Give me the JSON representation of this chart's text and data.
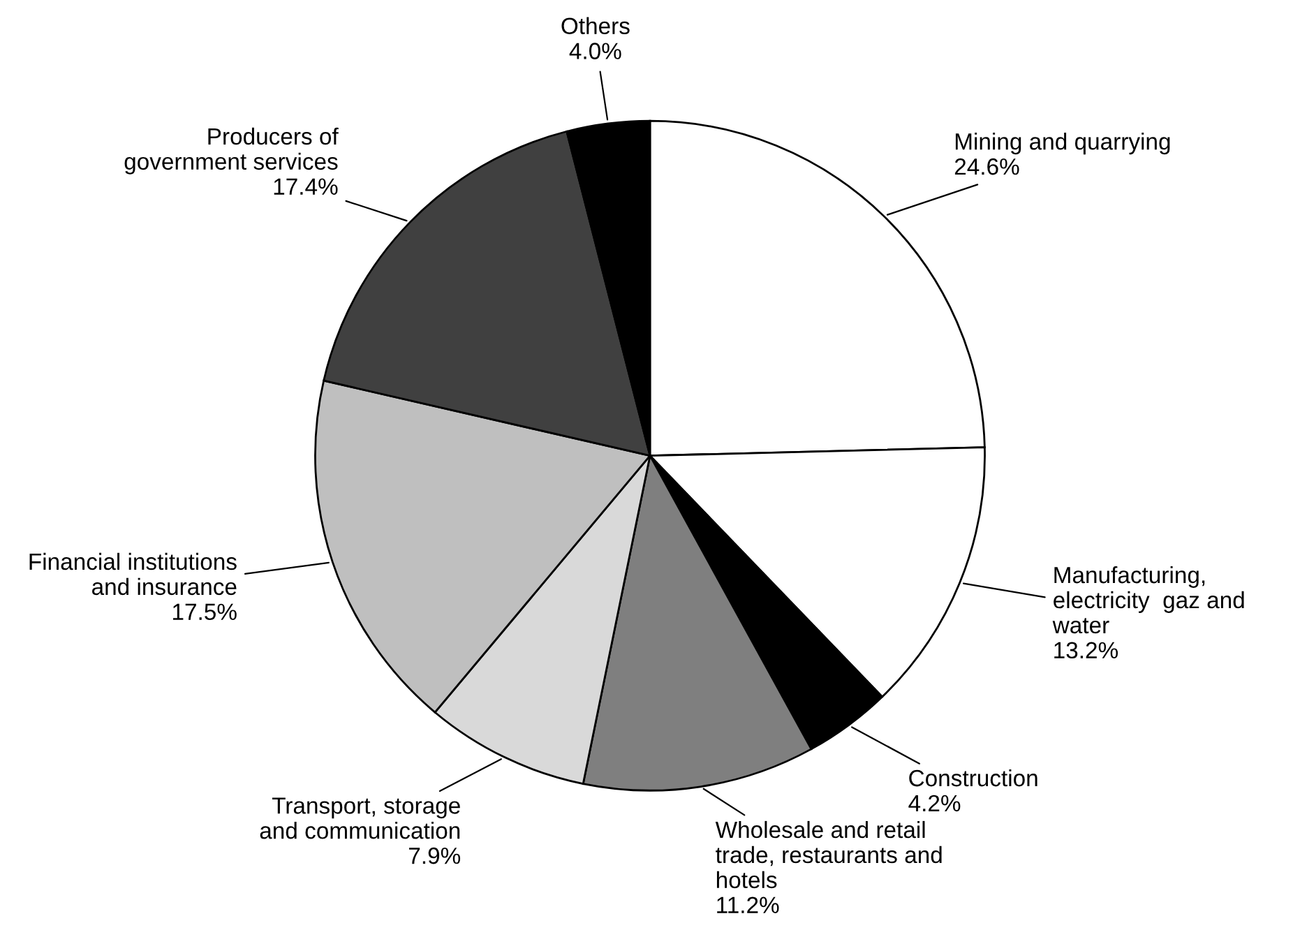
{
  "chart_data": {
    "type": "pie",
    "categories": [
      "Mining and quarrying",
      "Manufacturing,\nelectricity  gaz and\nwater",
      "Construction",
      "Wholesale and retail\ntrade, restaurants and\nhotels",
      "Transport, storage\nand communication",
      "Financial institutions\nand insurance",
      "Producers of\ngovernment services",
      "Others"
    ],
    "values": [
      24.6,
      13.2,
      4.2,
      11.2,
      7.9,
      17.5,
      17.4,
      4.0
    ],
    "value_labels": [
      "24.6%",
      "13.2%",
      "4.2%",
      "11.2%",
      "7.9%",
      "17.5%",
      "17.4%",
      "4.0%"
    ],
    "colors": [
      "#ffffff",
      "#ffffff",
      "#000000",
      "#7f7f7f",
      "#d9d9d9",
      "#bfbfbf",
      "#404040",
      "#000000"
    ]
  }
}
